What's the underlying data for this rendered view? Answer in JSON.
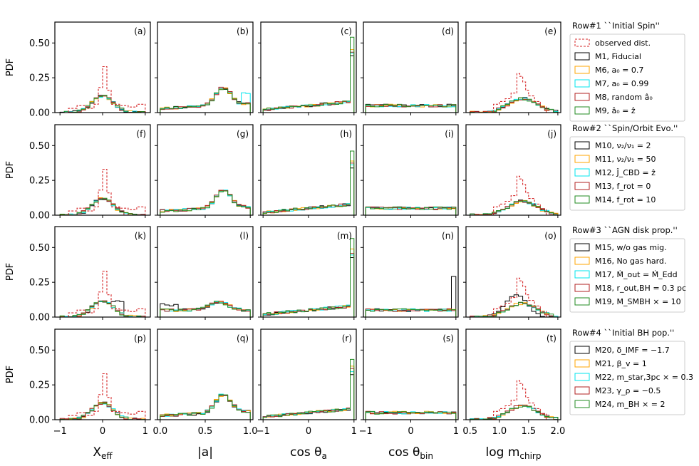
{
  "ylabel": "PDF",
  "ytick_labels": [
    "0.00",
    "0.25",
    "0.50"
  ],
  "columns": [
    {
      "label_main": "X",
      "label_sub": "eff",
      "ticks": [
        "−1",
        "0",
        "1"
      ]
    },
    {
      "label_main": "|a|",
      "label_sub": "",
      "ticks": [
        "0.0",
        "0.5",
        "1.0"
      ]
    },
    {
      "label_main": "cos θ",
      "label_sub": "a",
      "ticks": [
        "−1",
        "0",
        "1"
      ]
    },
    {
      "label_main": "cos θ",
      "label_sub": "bin",
      "ticks": [
        "−1",
        "0",
        "1"
      ]
    },
    {
      "label_main": "log m",
      "label_sub": "chirp",
      "ticks": [
        "0.5",
        "1.0",
        "1.5",
        "2.0"
      ]
    }
  ],
  "panel_labels": [
    [
      "(a)",
      "(b)",
      "(c)",
      "(d)",
      "(e)"
    ],
    [
      "(f)",
      "(g)",
      "(h)",
      "(i)",
      "(j)"
    ],
    [
      "(k)",
      "(l)",
      "(m)",
      "(n)",
      "(o)"
    ],
    [
      "(p)",
      "(q)",
      "(r)",
      "(s)",
      "(t)"
    ]
  ],
  "legends": [
    {
      "title": "Row#1 ``Initial Spin''",
      "items": [
        "observed dist.",
        "M1, Fiducial",
        "M6, a₀ = 0.7",
        "M7, a₀ = 0.99",
        "M8, random â₀",
        "M9, â₀ = ẑ"
      ]
    },
    {
      "title": "Row#2 ``Spin/Orbit Evo.''",
      "items": [
        "M10, ν₂/ν₁ = 2",
        "M11, ν₂/ν₁ = 50",
        "M12, Ĵ_CBD = ẑ",
        "M13, f_rot = 0",
        "M14, f_rot = 10"
      ]
    },
    {
      "title": "Row#3 ``AGN disk prop.''",
      "items": [
        "M15, w/o gas mig.",
        "M16, No gas hard.",
        "M17, Ṁ_out = Ṁ_Edd",
        "M18, r_out,BH = 0.3 pc",
        "M19, M_SMBH × = 10"
      ]
    },
    {
      "title": "Row#4 ``Initial BH pop.''",
      "items": [
        "M20, δ_IMF = −1.7",
        "M21, β_v = 1",
        "M22, m_star,3pc × = 0.3",
        "M23, γ_ρ = −0.5",
        "M24, m_BH × = 2"
      ]
    }
  ],
  "colors": {
    "observed": "#d62728",
    "rows": [
      [
        "#000000",
        "#ffa500",
        "#00e5ee",
        "#b22222",
        "#228b22"
      ],
      [
        "#000000",
        "#ffa500",
        "#00e5ee",
        "#b22222",
        "#228b22"
      ],
      [
        "#000000",
        "#ffa500",
        "#00e5ee",
        "#b22222",
        "#228b22"
      ],
      [
        "#000000",
        "#ffa500",
        "#00e5ee",
        "#b22222",
        "#228b22"
      ]
    ]
  },
  "chart_data": {
    "type": "histogram-grid",
    "ylim": [
      0,
      0.65
    ],
    "yticks": [
      0,
      0.25,
      0.5
    ],
    "columns": [
      {
        "name": "X_eff",
        "xlim": [
          -1.12,
          1.12
        ],
        "xticks": [
          -1,
          0,
          1
        ]
      },
      {
        "name": "|a|",
        "xlim": [
          -0.03,
          1.03
        ],
        "xticks": [
          0,
          0.5,
          1
        ]
      },
      {
        "name": "cos theta_a",
        "xlim": [
          -1.05,
          1.05
        ],
        "xticks": [
          -1,
          0,
          1
        ]
      },
      {
        "name": "cos theta_bin",
        "xlim": [
          -1.05,
          1.05
        ],
        "xticks": [
          -1,
          0,
          1
        ]
      },
      {
        "name": "log m_chirp",
        "xlim": [
          0.43,
          2.05
        ],
        "xticks": [
          0.5,
          1.0,
          1.5,
          2.0
        ]
      }
    ],
    "observed": {
      "xeff": {
        "edges": [
          -0.8,
          -0.6,
          -0.4,
          -0.2,
          -0.1,
          0,
          0.1,
          0.2,
          0.4,
          0.6,
          0.8,
          1.0
        ],
        "values": [
          0.03,
          0.05,
          0.03,
          0.06,
          0.18,
          0.33,
          0.16,
          0.06,
          0.05,
          0.04,
          0.06
        ]
      },
      "mchirp": {
        "edges": [
          0.9,
          1.0,
          1.1,
          1.2,
          1.3,
          1.35,
          1.4,
          1.45,
          1.5,
          1.6,
          1.7,
          1.8
        ],
        "values": [
          0.06,
          0.08,
          0.1,
          0.14,
          0.28,
          0.26,
          0.22,
          0.16,
          0.12,
          0.08,
          0.04
        ]
      }
    }
  }
}
